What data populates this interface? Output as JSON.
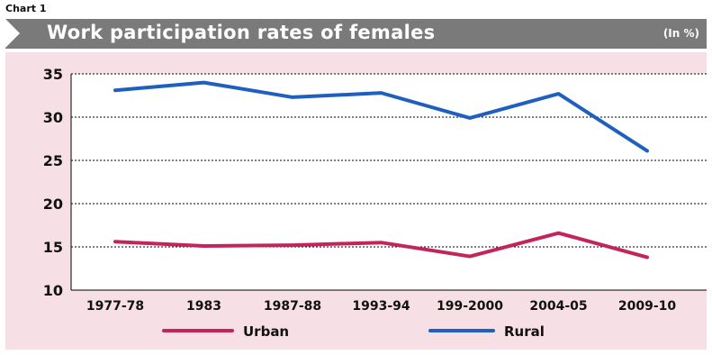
{
  "header": {
    "chart_label": "Chart 1",
    "title": "Work participation rates of females",
    "unit": "(In %)"
  },
  "colors": {
    "urban": "#c4245c",
    "rural": "#1f5fbf",
    "title_bar": "#7a7a7a",
    "panel_bg": "#f7dfe6"
  },
  "chart_data": {
    "type": "line",
    "title": "Work participation rates of females",
    "categories": [
      "1977-78",
      "1983",
      "1987-88",
      "1993-94",
      "199-2000",
      "2004-05",
      "2009-10"
    ],
    "series": [
      {
        "name": "Urban",
        "values": [
          15.6,
          15.1,
          15.2,
          15.5,
          13.9,
          16.6,
          13.8
        ]
      },
      {
        "name": "Rural",
        "values": [
          33.1,
          34.0,
          32.3,
          32.8,
          29.9,
          32.7,
          26.1
        ]
      }
    ],
    "ylim": [
      10,
      35
    ],
    "yticks": [
      "10",
      "15",
      "20",
      "25",
      "30",
      "35"
    ],
    "grid": true,
    "legend": "bottom"
  }
}
